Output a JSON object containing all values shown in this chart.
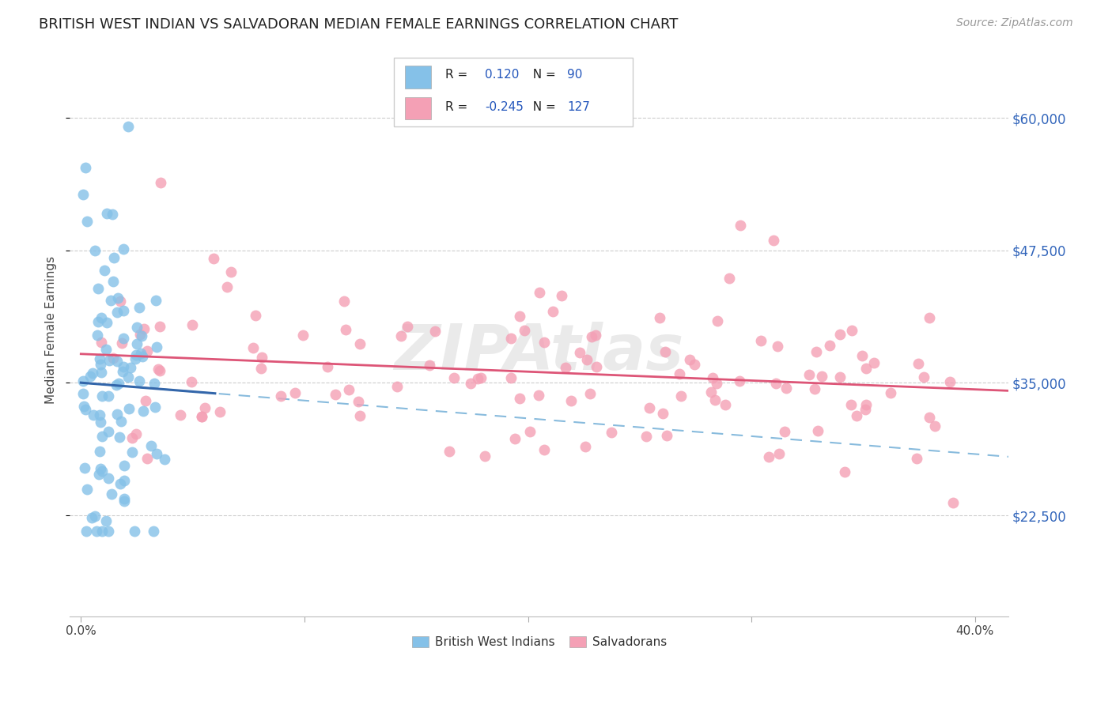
{
  "title": "BRITISH WEST INDIAN VS SALVADORAN MEDIAN FEMALE EARNINGS CORRELATION CHART",
  "source": "Source: ZipAtlas.com",
  "ylabel": "Median Female Earnings",
  "x_ticklabels_ends": [
    "0.0%",
    "40.0%"
  ],
  "x_ticks_ends": [
    0.0,
    0.4
  ],
  "x_ticks_minor": [
    0.1,
    0.2,
    0.3
  ],
  "y_ticklabels": [
    "$22,500",
    "$35,000",
    "$47,500",
    "$60,000"
  ],
  "y_ticks": [
    22500,
    35000,
    47500,
    60000
  ],
  "xlim": [
    -0.005,
    0.415
  ],
  "ylim": [
    13000,
    67000
  ],
  "legend_label1": "British West Indians",
  "legend_label2": "Salvadorans",
  "r1": "0.120",
  "n1": "90",
  "r2": "-0.245",
  "n2": "127",
  "color_bwi": "#85C1E8",
  "color_sal": "#F4A0B5",
  "color_bwi_solid": "#3366AA",
  "color_bwi_dash": "#88BBDD",
  "color_sal_line": "#DD5577",
  "watermark": "ZIPAtlas"
}
